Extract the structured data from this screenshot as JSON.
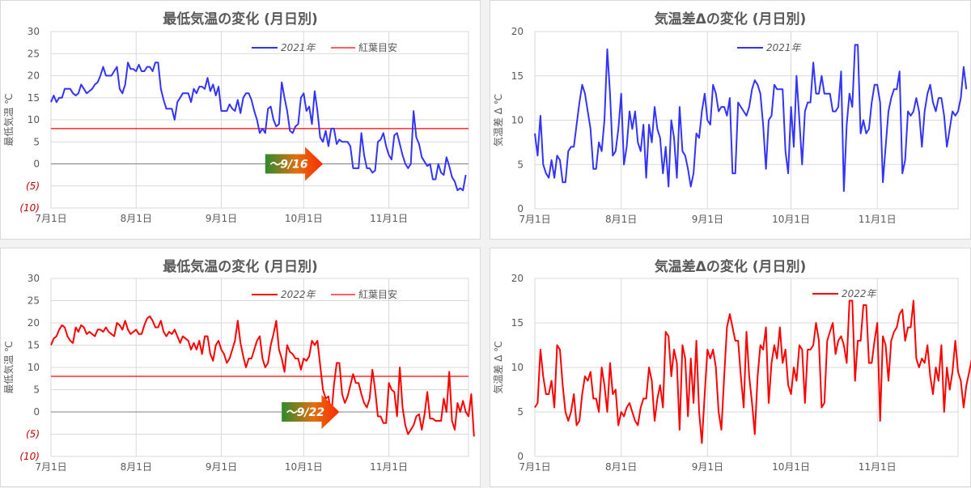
{
  "chart_data": [
    {
      "id": "p1",
      "type": "line",
      "title": "最低気温の変化 (月日別)",
      "ylabel": "最低気温 ℃",
      "ylim": [
        -10,
        30
      ],
      "yticks": [
        {
          "v": 30,
          "label": "30"
        },
        {
          "v": 25,
          "label": "25"
        },
        {
          "v": 20,
          "label": "20"
        },
        {
          "v": 15,
          "label": "15"
        },
        {
          "v": 10,
          "label": "10"
        },
        {
          "v": 5,
          "label": "5"
        },
        {
          "v": 0,
          "label": "0"
        },
        {
          "v": -5,
          "label": "(5)"
        },
        {
          "v": -10,
          "label": "(10)"
        }
      ],
      "xticks": [
        {
          "day": 0,
          "label": "7月1日"
        },
        {
          "day": 31,
          "label": "8月1日"
        },
        {
          "day": 62,
          "label": "9月1日"
        },
        {
          "day": 92,
          "label": "10月1日"
        },
        {
          "day": 123,
          "label": "11月1日"
        }
      ],
      "xmax": 152,
      "grid": true,
      "legend": "top-right",
      "threshold": {
        "name": "紅葉目安",
        "value": 8,
        "color": "#ff0000"
      },
      "arrow": {
        "label": "～9/16",
        "day_start": 78,
        "day_end": 99,
        "value": 0
      },
      "series": [
        {
          "name": "2021年",
          "color": "#3333ff",
          "values": [
            14,
            15.5,
            14,
            15,
            15,
            17,
            17,
            17,
            16,
            15.5,
            16,
            18,
            17,
            16,
            16.5,
            17,
            18,
            18.5,
            20,
            22,
            20,
            20,
            20,
            21,
            22,
            17,
            16,
            18,
            23,
            21.5,
            21.5,
            21,
            22.5,
            21,
            21,
            22,
            22,
            21,
            23,
            23,
            17,
            14.5,
            12.5,
            12.5,
            12.5,
            10,
            14,
            15,
            16,
            16,
            16,
            14,
            17,
            16,
            17.5,
            17.5,
            17,
            19.5,
            16.5,
            18,
            15.5,
            17.5,
            12,
            12,
            12,
            13.5,
            12.5,
            12,
            14.5,
            11.5,
            15,
            16,
            16,
            14.5,
            12,
            10,
            7,
            8,
            7,
            12.5,
            13,
            10,
            8.5,
            9,
            18.5,
            15,
            12,
            7.5,
            7,
            8.5,
            9,
            15,
            16,
            12,
            13,
            9,
            16.5,
            12,
            6,
            5,
            7.5,
            4,
            8,
            8,
            4.5,
            5.5,
            5,
            5,
            5,
            4,
            -1,
            -1,
            -1,
            7,
            2,
            -1,
            -1,
            -2,
            -1.5,
            5,
            5.5,
            7,
            4,
            2,
            1,
            6.5,
            7,
            4.5,
            2,
            0,
            -1,
            0,
            12,
            6,
            4.5,
            1.5,
            0.5,
            -0.5,
            0,
            -3.5,
            -3.5,
            0,
            -2,
            -2.5,
            1.5,
            -0.5,
            -3,
            -4,
            -6,
            -5.5,
            -6,
            -2.5
          ]
        }
      ]
    },
    {
      "id": "p2",
      "type": "line",
      "title": "気温差Δの変化 (月日別)",
      "ylabel": "気温差 Δ ℃",
      "ylim": [
        0,
        20
      ],
      "yticks": [
        {
          "v": 20,
          "label": "20"
        },
        {
          "v": 15,
          "label": "15"
        },
        {
          "v": 10,
          "label": "10"
        },
        {
          "v": 5,
          "label": "5"
        },
        {
          "v": 0,
          "label": "0"
        }
      ],
      "xticks": [
        {
          "day": 0,
          "label": "7月1日"
        },
        {
          "day": 31,
          "label": "8月1日"
        },
        {
          "day": 62,
          "label": "9月1日"
        },
        {
          "day": 92,
          "label": "10月1日"
        },
        {
          "day": 123,
          "label": "11月1日"
        }
      ],
      "xmax": 152,
      "grid": true,
      "legend": "top-center",
      "series": [
        {
          "name": "2021年",
          "color": "#3333ff",
          "values": [
            8.5,
            6,
            10.5,
            5,
            4,
            3.5,
            5.5,
            3.5,
            6,
            5.5,
            3,
            3,
            6.5,
            7,
            7,
            9.5,
            12,
            14,
            13,
            11,
            9,
            4.5,
            4.5,
            7.5,
            6.5,
            10,
            18,
            13,
            6,
            6.5,
            9,
            13,
            5,
            7,
            11,
            9,
            11,
            7.5,
            6.5,
            9.5,
            3.5,
            9.5,
            7.5,
            11.5,
            9,
            8,
            4,
            7,
            2.5,
            10,
            8,
            3.5,
            11.5,
            6.5,
            6,
            4.5,
            2.5,
            4,
            8.5,
            8,
            11,
            13,
            10,
            9.5,
            14,
            13,
            11,
            11.5,
            11.5,
            10.5,
            12.5,
            4,
            4,
            12,
            11.5,
            11,
            10.5,
            11.5,
            13.5,
            14.5,
            14,
            13,
            9.5,
            4.5,
            10,
            10.5,
            14,
            13.5,
            13.5,
            13.5,
            6.5,
            4,
            11.5,
            7,
            15,
            10,
            5,
            11,
            12,
            12,
            16.5,
            13,
            13,
            15,
            13,
            13,
            13,
            11,
            11,
            11.5,
            15.5,
            2,
            9.5,
            13,
            11.5,
            18.5,
            18.5,
            8.5,
            10,
            8.5,
            9,
            12,
            14,
            14,
            12,
            3,
            7,
            11,
            12.5,
            13.5,
            13.5,
            15.5,
            4,
            5.5,
            11,
            10.5,
            11,
            12.5,
            11,
            7,
            11,
            13,
            14,
            12,
            11,
            12.5,
            12.5,
            10.5,
            7,
            9,
            11,
            10.5,
            11,
            12.5,
            16,
            13.5
          ]
        }
      ]
    },
    {
      "id": "p3",
      "type": "line",
      "title": "最低気温の変化 (月日別)",
      "ylabel": "最低気温 ℃",
      "ylim": [
        -10,
        30
      ],
      "yticks": [
        {
          "v": 30,
          "label": "30"
        },
        {
          "v": 25,
          "label": "25"
        },
        {
          "v": 20,
          "label": "20"
        },
        {
          "v": 15,
          "label": "15"
        },
        {
          "v": 10,
          "label": "10"
        },
        {
          "v": 5,
          "label": "5"
        },
        {
          "v": 0,
          "label": "0"
        },
        {
          "v": -5,
          "label": "(5)"
        },
        {
          "v": -10,
          "label": "(10)"
        }
      ],
      "xticks": [
        {
          "day": 0,
          "label": "7月1日"
        },
        {
          "day": 31,
          "label": "8月1日"
        },
        {
          "day": 62,
          "label": "9月1日"
        },
        {
          "day": 92,
          "label": "10月1日"
        },
        {
          "day": 123,
          "label": "11月1日"
        }
      ],
      "xmax": 152,
      "grid": true,
      "legend": "top-right",
      "threshold": {
        "name": "紅葉目安",
        "value": 8,
        "color": "#ff0000"
      },
      "arrow": {
        "label": "～9/22",
        "day_start": 84,
        "day_end": 105,
        "value": 0
      },
      "series": [
        {
          "name": "2022年",
          "color": "#ff0000",
          "values": [
            15,
            16.5,
            17,
            18.5,
            19.5,
            19,
            17,
            16,
            15.5,
            19,
            18,
            19.5,
            19,
            17.5,
            18,
            17.5,
            17,
            18.5,
            18.5,
            18,
            19,
            18,
            17.5,
            17,
            20,
            19.5,
            18.5,
            20.5,
            18.5,
            17.5,
            18,
            18.5,
            17.5,
            17.5,
            19.5,
            21,
            21.5,
            20.5,
            19,
            19,
            20.5,
            18,
            17,
            18,
            17.5,
            18.5,
            17,
            15.5,
            17,
            16.5,
            16,
            14,
            15.5,
            14,
            16,
            13,
            17,
            17,
            13,
            11.5,
            15,
            16,
            14,
            13,
            11,
            12,
            14,
            16,
            20.5,
            15.5,
            12.5,
            10,
            12,
            12,
            14,
            16,
            17,
            12,
            10,
            11,
            15,
            17.5,
            20.5,
            14,
            12,
            9,
            15,
            13.5,
            13,
            12,
            12,
            9.5,
            12,
            11.5,
            12.5,
            16,
            15,
            16,
            10.5,
            5,
            3,
            3.5,
            -1,
            6,
            11,
            11,
            4,
            2,
            3.5,
            6,
            8.5,
            6.5,
            6.5,
            4,
            2,
            1,
            3,
            9.5,
            5,
            -1,
            -1,
            -2.5,
            -2.5,
            6.5,
            5,
            4.5,
            -1,
            10,
            1,
            -3,
            -5,
            -4,
            -3,
            -1,
            -0.5,
            -4,
            -0.5,
            4.5,
            -1.5,
            -1.5,
            -2,
            -2,
            -2,
            3,
            0,
            9,
            -2,
            -4,
            2,
            0,
            2.5,
            0,
            -1,
            4,
            -5.5
          ]
        }
      ]
    },
    {
      "id": "p4",
      "type": "line",
      "title": "気温差Δの変化 (月日別)",
      "ylabel": "気温差 Δ ℃",
      "ylim": [
        0,
        20
      ],
      "yticks": [
        {
          "v": 20,
          "label": "20"
        },
        {
          "v": 15,
          "label": "15"
        },
        {
          "v": 10,
          "label": "10"
        },
        {
          "v": 5,
          "label": "5"
        },
        {
          "v": 0,
          "label": "0"
        }
      ],
      "xticks": [
        {
          "day": 0,
          "label": "7月1日"
        },
        {
          "day": 31,
          "label": "8月1日"
        },
        {
          "day": 62,
          "label": "9月1日"
        },
        {
          "day": 92,
          "label": "10月1日"
        },
        {
          "day": 123,
          "label": "11月1日"
        }
      ],
      "xmax": 152,
      "grid": true,
      "legend": "top-center",
      "series": [
        {
          "name": "2022年",
          "color": "#ff0000",
          "values": [
            5.5,
            6,
            12,
            9,
            7,
            7,
            8.5,
            5.5,
            12.5,
            12,
            8,
            5,
            4,
            5,
            7,
            3.5,
            4,
            7,
            9,
            8.5,
            9.5,
            6.5,
            6.5,
            5,
            10,
            8,
            5,
            10.5,
            7,
            7.5,
            3.5,
            5,
            4.5,
            5.5,
            6,
            5,
            4,
            3.5,
            5.5,
            6.5,
            6.5,
            10,
            8.5,
            4,
            6.5,
            8,
            5.5,
            14,
            13.5,
            9,
            12,
            10.5,
            3,
            12.5,
            11,
            4.5,
            11,
            6,
            13,
            5,
            1.5,
            7,
            12,
            11,
            12,
            10,
            5,
            3,
            9,
            14.5,
            16,
            14.5,
            13,
            13,
            9,
            5.5,
            14,
            9,
            6,
            2.5,
            9,
            12.5,
            12,
            14.5,
            6,
            10.5,
            12.5,
            11,
            14.5,
            10.5,
            12,
            8,
            7,
            10,
            8.5,
            12.5,
            12,
            6,
            12,
            12,
            12.5,
            15,
            13,
            5.5,
            6,
            13,
            14,
            15,
            11.5,
            13,
            13.5,
            12.5,
            10.5,
            17.5,
            17.5,
            8.5,
            13,
            13,
            17,
            17,
            10.5,
            10.5,
            13,
            15,
            4,
            13.5,
            12.5,
            8.5,
            13,
            14,
            14.5,
            16,
            16.5,
            13,
            14.5,
            14.5,
            17.5,
            11,
            10,
            11,
            10.5,
            12.5,
            9,
            7,
            10,
            8.5,
            12.5,
            5,
            10,
            7.5,
            9.5,
            13,
            9.5,
            8.5,
            5.5,
            8,
            9.5,
            11
          ]
        }
      ]
    }
  ],
  "labels": {
    "p1": {
      "legend_series": "2021年",
      "legend_threshold": "紅葉目安"
    },
    "p2": {
      "legend_series": "2021年"
    },
    "p3": {
      "legend_series": "2022年",
      "legend_threshold": "紅葉目安"
    },
    "p4": {
      "legend_series": "2022年"
    }
  }
}
